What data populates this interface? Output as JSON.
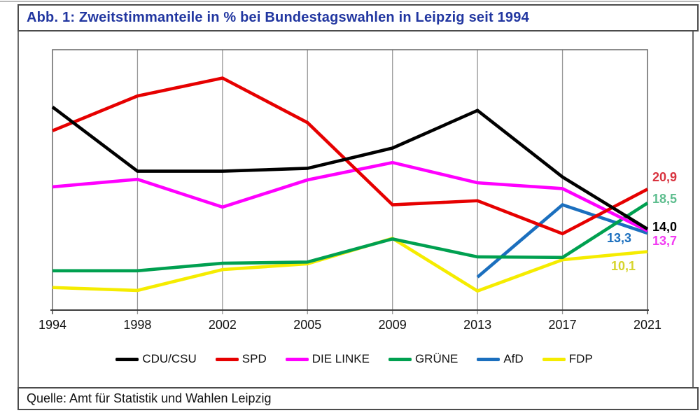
{
  "title": "Abb. 1: Zweitstimmanteile in % bei Bundestagswahlen in Leipzig seit 1994",
  "source": "Quelle: Amt für Statistik und Wahlen Leipzig",
  "accent_color": "#2136a0",
  "chart_data": {
    "type": "line",
    "title": "Abb. 1: Zweitstimmanteile in % bei Bundestagswahlen in Leipzig seit 1994",
    "x": [
      "1994",
      "1998",
      "2002",
      "2005",
      "2009",
      "2013",
      "2017",
      "2021"
    ],
    "ylim": [
      0,
      45
    ],
    "grid": "vertical-only",
    "legend_position": "bottom",
    "series": [
      {
        "name": "CDU/CSU",
        "color": "#000000",
        "label_color": "#000000",
        "end_label": "14,0",
        "values": [
          35.1,
          24.0,
          24.0,
          24.5,
          28.0,
          34.5,
          23.0,
          14.0
        ]
      },
      {
        "name": "SPD",
        "color": "#e60000",
        "label_color": "#d8333f",
        "end_label": "20,9",
        "values": [
          31.0,
          37.0,
          40.1,
          32.4,
          18.2,
          18.9,
          13.2,
          20.9
        ]
      },
      {
        "name": "DIE LINKE",
        "color": "#ff00ff",
        "label_color": "#f23af2",
        "end_label": "13,7",
        "values": [
          21.3,
          22.6,
          17.8,
          22.5,
          25.5,
          22.0,
          21.0,
          13.7
        ]
      },
      {
        "name": "GRÜNE",
        "color": "#00a050",
        "label_color": "#5dbd8e",
        "end_label": "18,5",
        "values": [
          6.8,
          6.8,
          8.1,
          8.3,
          12.3,
          9.2,
          9.1,
          18.5
        ]
      },
      {
        "name": "AfD",
        "color": "#1b6fbe",
        "label_color": "#1b6fbe",
        "end_label": "13,3",
        "values": [
          null,
          null,
          null,
          null,
          null,
          5.7,
          18.2,
          13.3
        ]
      },
      {
        "name": "FDP",
        "color": "#f5ec00",
        "label_color": "#d6d42c",
        "end_label": "10,1",
        "values": [
          3.9,
          3.4,
          7.0,
          8.0,
          12.4,
          3.3,
          8.7,
          10.1
        ]
      }
    ]
  }
}
